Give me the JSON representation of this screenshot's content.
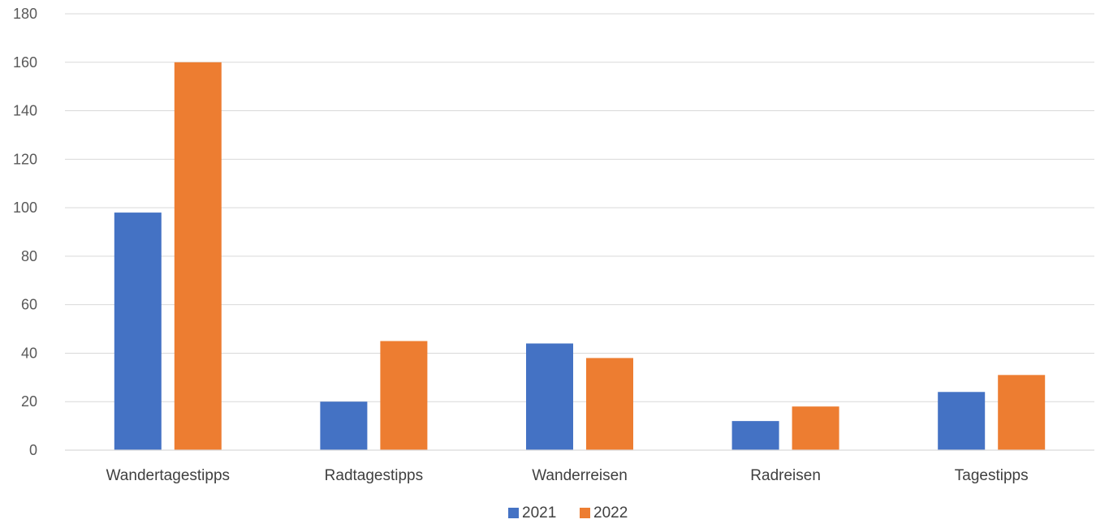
{
  "chart_data": {
    "type": "bar",
    "title": "",
    "xlabel": "",
    "ylabel": "",
    "categories": [
      "Wandertagestipps",
      "Radtagestipps",
      "Wanderreisen",
      "Radreisen",
      "Tagestipps"
    ],
    "series": [
      {
        "name": "2021",
        "color": "#4472c4",
        "values": [
          98,
          20,
          44,
          12,
          24
        ]
      },
      {
        "name": "2022",
        "color": "#ed7d31",
        "values": [
          160,
          45,
          38,
          18,
          31
        ]
      }
    ],
    "ylim": [
      0,
      180
    ],
    "yticks": [
      "0",
      "20",
      "40",
      "60",
      "80",
      "100",
      "120",
      "140",
      "160",
      "180"
    ],
    "grid": true,
    "legend_position": "bottom"
  }
}
